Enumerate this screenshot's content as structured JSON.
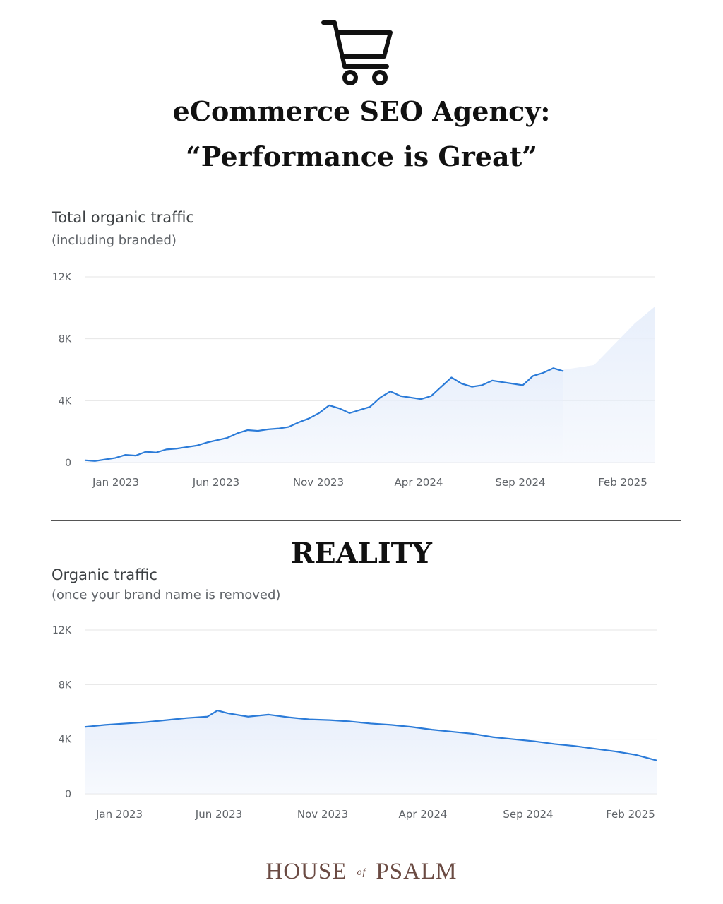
{
  "icons": {
    "cart": "shopping-cart-icon"
  },
  "headline": {
    "line1": "eCommerce SEO Agency:",
    "line2": "“Performance is Great”"
  },
  "reality_label": "REALITY",
  "brand": {
    "part1": "HOUSE",
    "part2": "of",
    "part3": "PSALM",
    "color": "#6b4b43"
  },
  "colors": {
    "line": "#2b7bd8",
    "area": "#e8effb",
    "grid": "#e6e6e6"
  },
  "chart_data": [
    {
      "type": "area",
      "title": "Total organic traffic",
      "subtitle": "(including branded)",
      "x_ticks": [
        "Jan 2023",
        "Jun 2023",
        "Nov 2023",
        "Apr 2024",
        "Sep 2024",
        "Feb 2025"
      ],
      "y_ticks": [
        "0",
        "4K",
        "8K",
        "12K"
      ],
      "ylim": [
        0,
        12000
      ],
      "x_range": [
        0,
        28
      ],
      "grid": true,
      "series": [
        {
          "values": [
            [
              0,
              150
            ],
            [
              0.5,
              100
            ],
            [
              1,
              200
            ],
            [
              1.5,
              300
            ],
            [
              2,
              500
            ],
            [
              2.5,
              450
            ],
            [
              3,
              700
            ],
            [
              3.5,
              650
            ],
            [
              4,
              850
            ],
            [
              4.5,
              900
            ],
            [
              5,
              1000
            ],
            [
              5.5,
              1100
            ],
            [
              6,
              1300
            ],
            [
              6.5,
              1450
            ],
            [
              7,
              1600
            ],
            [
              7.5,
              1900
            ],
            [
              8,
              2100
            ],
            [
              8.5,
              2050
            ],
            [
              9,
              2150
            ],
            [
              9.5,
              2200
            ],
            [
              10,
              2300
            ],
            [
              10.5,
              2600
            ],
            [
              11,
              2850
            ],
            [
              11.5,
              3200
            ],
            [
              12,
              3700
            ],
            [
              12.5,
              3500
            ],
            [
              13,
              3200
            ],
            [
              13.5,
              3400
            ],
            [
              14,
              3600
            ],
            [
              14.5,
              4200
            ],
            [
              15,
              4600
            ],
            [
              15.5,
              4300
            ],
            [
              16,
              4200
            ],
            [
              16.5,
              4100
            ],
            [
              17,
              4300
            ],
            [
              17.5,
              4900
            ],
            [
              18,
              5500
            ],
            [
              18.5,
              5100
            ],
            [
              19,
              4900
            ],
            [
              19.5,
              5000
            ],
            [
              20,
              5300
            ],
            [
              20.5,
              5200
            ],
            [
              21,
              5100
            ],
            [
              21.5,
              5000
            ],
            [
              22,
              5600
            ],
            [
              22.5,
              5800
            ],
            [
              23,
              6100
            ],
            [
              23.5,
              5900
            ]
          ]
        }
      ],
      "forecast_band": [
        [
          23.5,
          6000
        ],
        [
          25,
          6300
        ],
        [
          27,
          9000
        ],
        [
          28,
          10100
        ]
      ]
    },
    {
      "type": "area",
      "title": "Organic traffic",
      "subtitle": "(once your brand name is removed)",
      "x_ticks": [
        "Jan 2023",
        "Jun 2023",
        "Nov 2023",
        "Apr 2024",
        "Sep 2024",
        "Feb 2025"
      ],
      "y_ticks": [
        "0",
        "4K",
        "8K",
        "12K"
      ],
      "ylim": [
        0,
        12000
      ],
      "x_range": [
        0,
        28
      ],
      "grid": true,
      "series": [
        {
          "values": [
            [
              0,
              4900
            ],
            [
              1,
              5050
            ],
            [
              2,
              5150
            ],
            [
              3,
              5250
            ],
            [
              4,
              5400
            ],
            [
              5,
              5550
            ],
            [
              6,
              5650
            ],
            [
              6.5,
              6100
            ],
            [
              7,
              5900
            ],
            [
              8,
              5650
            ],
            [
              9,
              5800
            ],
            [
              10,
              5600
            ],
            [
              11,
              5450
            ],
            [
              12,
              5400
            ],
            [
              13,
              5300
            ],
            [
              14,
              5150
            ],
            [
              15,
              5050
            ],
            [
              16,
              4900
            ],
            [
              17,
              4700
            ],
            [
              18,
              4550
            ],
            [
              19,
              4400
            ],
            [
              20,
              4150
            ],
            [
              21,
              4000
            ],
            [
              22,
              3850
            ],
            [
              23,
              3650
            ],
            [
              24,
              3500
            ],
            [
              25,
              3300
            ],
            [
              26,
              3100
            ],
            [
              27,
              2850
            ],
            [
              28,
              2450
            ]
          ]
        }
      ]
    }
  ]
}
